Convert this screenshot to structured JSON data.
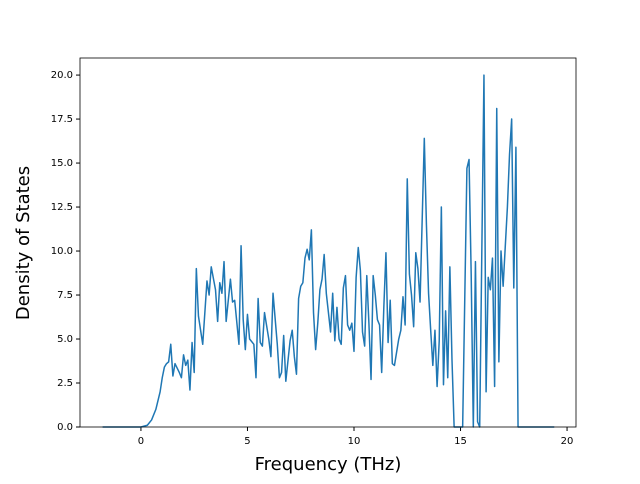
{
  "chart_data": {
    "type": "line",
    "xlabel": "Frequency (THz)",
    "ylabel": "Density of States",
    "xlim": [
      -2.86,
      20.42
    ],
    "ylim": [
      0,
      20.97
    ],
    "xticks": [
      0,
      5,
      10,
      15,
      20
    ],
    "yticks": [
      {
        "value": 0,
        "label": "0.0"
      },
      2.5,
      {
        "value": 5,
        "label": "5.0"
      },
      7.5,
      {
        "value": 10,
        "label": "10.0"
      },
      12.5,
      {
        "value": 15,
        "label": "15.0"
      },
      17.5,
      {
        "value": 20,
        "label": "20.0"
      }
    ],
    "series": [
      {
        "color": "#1f77b4",
        "x": [
          -1.8,
          0,
          0.3,
          0.5,
          0.7,
          0.9,
          1.0,
          1.1,
          1.2,
          1.3,
          1.4,
          1.5,
          1.6,
          1.8,
          1.9,
          2.0,
          2.1,
          2.2,
          2.3,
          2.4,
          2.5,
          2.6,
          2.7,
          2.9,
          3.1,
          3.2,
          3.3,
          3.5,
          3.6,
          3.7,
          3.8,
          3.9,
          4.0,
          4.2,
          4.3,
          4.4,
          4.6,
          4.7,
          4.8,
          4.9,
          5.0,
          5.1,
          5.3,
          5.4,
          5.5,
          5.6,
          5.7,
          5.8,
          6.0,
          6.1,
          6.2,
          6.4,
          6.5,
          6.6,
          6.7,
          6.8,
          7.0,
          7.1,
          7.2,
          7.3,
          7.4,
          7.5,
          7.6,
          7.7,
          7.8,
          7.9,
          8.0,
          8.1,
          8.2,
          8.3,
          8.4,
          8.5,
          8.6,
          8.7,
          8.9,
          9.0,
          9.1,
          9.2,
          9.3,
          9.4,
          9.5,
          9.6,
          9.7,
          9.8,
          9.9,
          10.0,
          10.1,
          10.2,
          10.3,
          10.4,
          10.5,
          10.6,
          10.7,
          10.8,
          10.9,
          11.0,
          11.1,
          11.2,
          11.3,
          11.4,
          11.5,
          11.6,
          11.7,
          11.8,
          11.9,
          12.1,
          12.2,
          12.3,
          12.4,
          12.5,
          12.6,
          12.7,
          12.8,
          12.9,
          13.0,
          13.1,
          13.3,
          13.4,
          13.5,
          13.6,
          13.7,
          13.8,
          13.9,
          14.0,
          14.1,
          14.2,
          14.3,
          14.4,
          14.5,
          14.6,
          14.7,
          15.0,
          15.1,
          15.3,
          15.4,
          15.5,
          15.6,
          15.7,
          15.8,
          15.9,
          16.1,
          16.2,
          16.3,
          16.4,
          16.5,
          16.6,
          16.7,
          16.8,
          16.9,
          17.0,
          17.2,
          17.3,
          17.4,
          17.5,
          17.6,
          17.7,
          19.4
        ],
        "values": [
          0,
          0,
          0.1,
          0.4,
          1.0,
          2.0,
          2.8,
          3.4,
          3.6,
          3.7,
          4.7,
          2.9,
          3.6,
          3.1,
          2.8,
          4.1,
          3.5,
          3.8,
          2.1,
          4.8,
          3.1,
          9.0,
          6.3,
          4.7,
          8.3,
          7.5,
          9.1,
          7.8,
          6.0,
          8.2,
          7.6,
          9.4,
          6.0,
          8.4,
          7.1,
          7.2,
          4.7,
          10.3,
          6.1,
          4.4,
          6.4,
          5.0,
          4.7,
          2.8,
          7.3,
          4.8,
          4.6,
          6.5,
          5.0,
          4.0,
          7.6,
          4.7,
          2.8,
          3.1,
          5.2,
          2.6,
          4.9,
          5.5,
          4.0,
          3.0,
          7.3,
          8.0,
          8.2,
          9.6,
          10.1,
          9.5,
          11.2,
          6.5,
          4.4,
          5.9,
          7.8,
          8.4,
          9.8,
          7.6,
          5.4,
          7.6,
          4.9,
          6.8,
          5.0,
          4.7,
          7.9,
          8.6,
          5.8,
          5.5,
          5.9,
          4.3,
          8.5,
          10.2,
          8.9,
          5.4,
          4.6,
          8.6,
          5.9,
          2.7,
          8.6,
          7.5,
          6.1,
          5.8,
          3.1,
          6.8,
          9.9,
          4.8,
          7.2,
          3.6,
          3.5,
          5.0,
          5.5,
          7.4,
          5.8,
          14.1,
          8.7,
          7.5,
          5.7,
          9.9,
          9.0,
          7.1,
          16.4,
          11.5,
          7.6,
          5.5,
          3.5,
          5.5,
          2.3,
          4.9,
          12.5,
          2.4,
          6.6,
          2.8,
          9.1,
          3.8,
          0,
          0,
          0,
          14.7,
          15.2,
          8.7,
          0,
          9.4,
          0.3,
          0,
          20.0,
          2.0,
          8.5,
          7.8,
          9.6,
          2.3,
          18.1,
          3.7,
          10.0,
          8.0,
          12.5,
          15.5,
          17.5,
          7.9,
          15.9,
          0,
          0
        ]
      }
    ]
  }
}
